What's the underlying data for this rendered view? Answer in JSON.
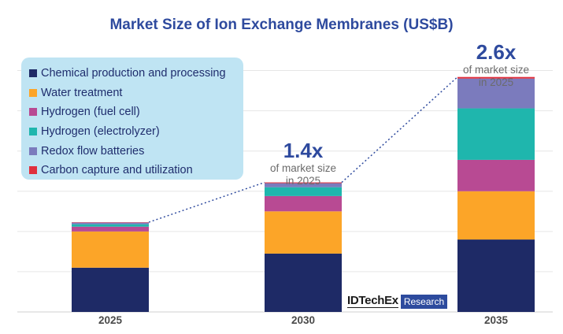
{
  "title": "Market Size of Ion Exchange Membranes (US$B)",
  "watermark": {
    "brand": "IDTechEx",
    "tag": "Research"
  },
  "callouts": [
    {
      "multiplier": "1.4x",
      "line1": "of market size",
      "line2": "in 2025"
    },
    {
      "multiplier": "2.6x",
      "line1": "of market size",
      "line2": "in 2025"
    }
  ],
  "chart_data": {
    "type": "bar",
    "stacked": true,
    "title": "Market Size of Ion Exchange Membranes (US$B)",
    "categories": [
      "2025",
      "2030",
      "2035"
    ],
    "ylim": [
      0,
      6.5
    ],
    "grid": true,
    "y_axis_labels_shown": false,
    "legend_position": "top-left",
    "series": [
      {
        "name": "Chemical production and processing",
        "color": "#1e2a66",
        "values": [
          1.1,
          1.45,
          1.8
        ]
      },
      {
        "name": "Water treatment",
        "color": "#fca528",
        "values": [
          0.9,
          1.05,
          1.2
        ]
      },
      {
        "name": "Hydrogen (fuel cell)",
        "color": "#b84a93",
        "values": [
          0.12,
          0.38,
          0.78
        ]
      },
      {
        "name": "Hydrogen (electrolyzer)",
        "color": "#1fb6ad",
        "values": [
          0.06,
          0.22,
          1.28
        ]
      },
      {
        "name": "Redox flow batteries",
        "color": "#7b7bbd",
        "values": [
          0.04,
          0.1,
          0.74
        ]
      },
      {
        "name": "Carbon capture and utilization",
        "color": "#e0303d",
        "values": [
          0.01,
          0.02,
          0.04
        ]
      }
    ]
  }
}
